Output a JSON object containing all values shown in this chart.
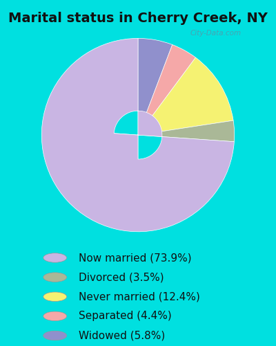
{
  "title": "Marital status in Cherry Creek, NY",
  "slices": [
    73.9,
    3.5,
    12.4,
    4.4,
    5.8
  ],
  "labels": [
    "Now married (73.9%)",
    "Divorced (3.5%)",
    "Never married (12.4%)",
    "Separated (4.4%)",
    "Widowed (5.8%)"
  ],
  "colors": [
    "#c9b5e3",
    "#aab897",
    "#f5f272",
    "#f5a8a8",
    "#9090cc"
  ],
  "bg_outer": "#00e0e0",
  "bg_inner_top": "#e8f5e8",
  "bg_inner_bottom": "#d0ead0",
  "title_color": "#111111",
  "title_fontsize": 14,
  "legend_fontsize": 11,
  "watermark": "City-Data.com",
  "donut_width": 0.55,
  "startangle": 90,
  "display_order": [
    4,
    3,
    2,
    1,
    0
  ]
}
